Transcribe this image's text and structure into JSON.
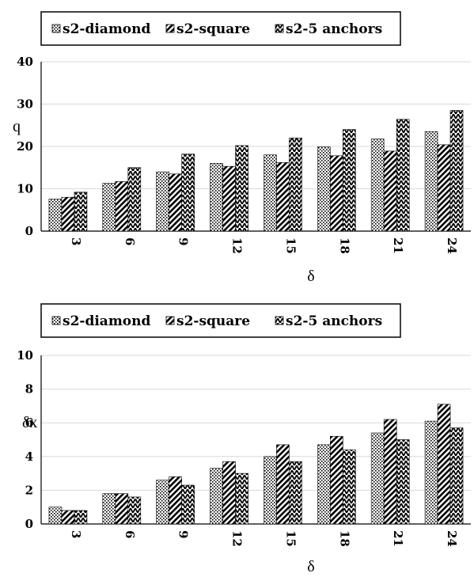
{
  "chart_data": [
    {
      "type": "bar",
      "categories": [
        "3",
        "6",
        "9",
        "12",
        "15",
        "18",
        "21",
        "24"
      ],
      "series": [
        {
          "name": "s2-diamond",
          "values": [
            7.6,
            11.3,
            14.0,
            16.0,
            18.0,
            19.9,
            21.8,
            23.5
          ]
        },
        {
          "name": "s2-square",
          "values": [
            8.0,
            11.7,
            13.5,
            15.3,
            16.2,
            17.8,
            18.9,
            20.4
          ]
        },
        {
          "name": "s2-5 anchors",
          "values": [
            9.2,
            15.0,
            18.2,
            20.2,
            22.0,
            24.0,
            26.4,
            28.5
          ]
        }
      ],
      "xlabel": "δ",
      "ylabel": "q",
      "ylim": [
        0,
        40
      ],
      "yticks": [
        "0",
        "10",
        "20",
        "30",
        "40"
      ],
      "grid": true,
      "legend": "top"
    },
    {
      "type": "bar",
      "categories": [
        "3",
        "6",
        "9",
        "12",
        "15",
        "18",
        "21",
        "24"
      ],
      "series": [
        {
          "name": "s2-diamond",
          "values": [
            1.0,
            1.8,
            2.6,
            3.3,
            4.0,
            4.7,
            5.4,
            6.1
          ]
        },
        {
          "name": "s2-square",
          "values": [
            0.8,
            1.8,
            2.8,
            3.7,
            4.7,
            5.2,
            6.2,
            7.1
          ]
        },
        {
          "name": "s2-5 anchors",
          "values": [
            0.8,
            1.6,
            2.3,
            3.0,
            3.7,
            4.4,
            5.0,
            5.7
          ]
        }
      ],
      "xlabel": "δ",
      "ylabel": "δx",
      "ylim": [
        0,
        10
      ],
      "yticks": [
        "0",
        "2",
        "4",
        "6",
        "8",
        "10"
      ],
      "grid": true,
      "legend": "top"
    }
  ]
}
